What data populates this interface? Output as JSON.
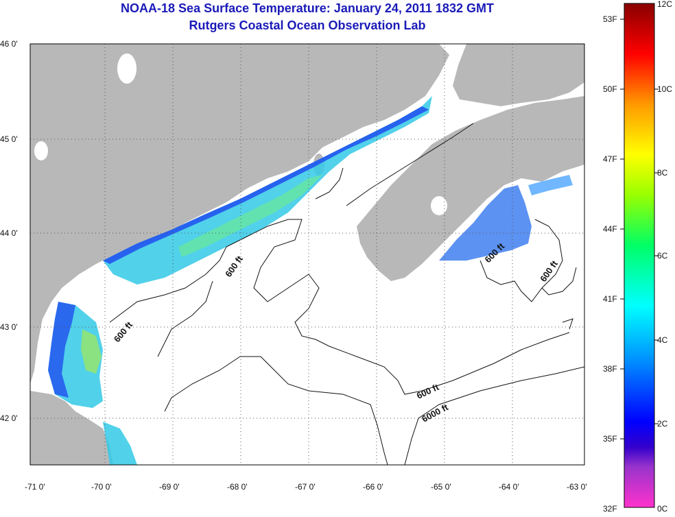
{
  "title": {
    "line1": "NOAA-18 Sea Surface Temperature:  January 24, 2011 1832 GMT",
    "line2": "Rutgers Coastal Ocean Observation Lab"
  },
  "map": {
    "lat_labels": [
      "46 0'",
      "45 0'",
      "44 0'",
      "43 0'",
      "42 0'"
    ],
    "lon_labels": [
      "-71 0'",
      "-70 0'",
      "-69 0'",
      "-68 0'",
      "-67 0'",
      "-66 0'",
      "-65 0'",
      "-64 0'",
      "-63 0'"
    ],
    "contour_labels": [
      "600 ft",
      "600 ft",
      "600 ft",
      "600 ft",
      "6000 ft",
      "600 ft"
    ],
    "land_color": "#b8b8b8",
    "ocean_color": "#ffffff"
  },
  "colorbar": {
    "fahrenheit_labels": [
      "53F",
      "50F",
      "47F",
      "44F",
      "41F",
      "38F",
      "35F",
      "32F"
    ],
    "celsius_labels": [
      "12C",
      "10C",
      "8C",
      "6C",
      "4C",
      "2C",
      "0C"
    ]
  }
}
